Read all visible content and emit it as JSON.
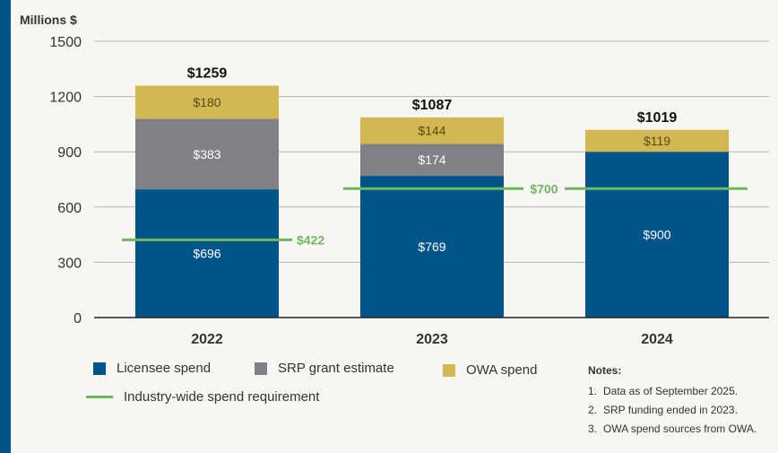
{
  "chart_data": {
    "type": "bar",
    "stacked": true,
    "ylabel": "Millions $",
    "ylim": [
      0,
      1500
    ],
    "yticks": [
      0,
      300,
      600,
      900,
      1200,
      1500
    ],
    "categories": [
      "2022",
      "2023",
      "2024"
    ],
    "series": [
      {
        "name": "Licensee spend",
        "color": "#00548a",
        "values": [
          696,
          769,
          900
        ],
        "labels": [
          "$696",
          "$769",
          "$900"
        ]
      },
      {
        "name": "SRP grant estimate",
        "color": "#808185",
        "values": [
          383,
          174,
          0
        ],
        "labels": [
          "$383",
          "$174",
          ""
        ]
      },
      {
        "name": "OWA spend",
        "color": "#d3b752",
        "values": [
          180,
          144,
          119
        ],
        "labels": [
          "$180",
          "$144",
          "$119"
        ]
      }
    ],
    "totals": [
      "$1259",
      "$1087",
      "$1019"
    ],
    "requirement": {
      "name": "Industry-wide spend requirement",
      "color": "#6cb85f",
      "segments": [
        {
          "category": "2022",
          "value": 422,
          "label": "$422"
        },
        {
          "category": "2023-2024",
          "value": 700,
          "label": "$700"
        }
      ]
    }
  },
  "legend": {
    "licensee": "Licensee spend",
    "srp": "SRP grant estimate",
    "owa": "OWA spend",
    "requirement": "Industry-wide spend requirement"
  },
  "notes": {
    "title": "Notes:",
    "items": [
      {
        "num": "1.",
        "text": "Data as of September 2025."
      },
      {
        "num": "2.",
        "text": "SRP funding ended in 2023."
      },
      {
        "num": "3.",
        "text": "OWA spend sources from OWA."
      }
    ]
  },
  "colors": {
    "licensee": "#00548a",
    "srp": "#808185",
    "owa": "#d3b752",
    "requirement": "#6cb85f"
  }
}
